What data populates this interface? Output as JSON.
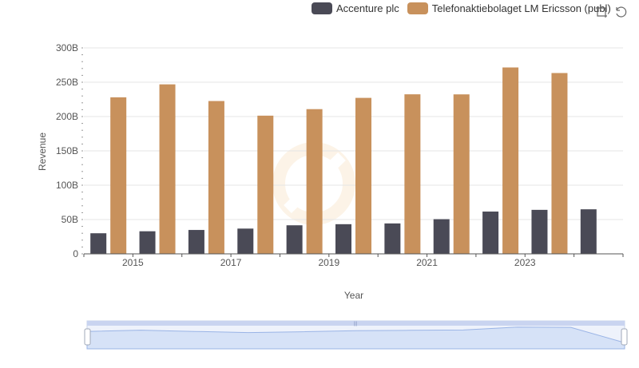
{
  "chart_data": {
    "type": "bar",
    "xlabel": "Year",
    "ylabel": "Revenue",
    "ylim": [
      0,
      300000000000
    ],
    "y_ticks": [
      "0",
      "50B",
      "100B",
      "150B",
      "200B",
      "250B",
      "300B"
    ],
    "x_tick_labels": [
      "2015",
      "2017",
      "2019",
      "2021",
      "2023"
    ],
    "categories": [
      "2014",
      "2015",
      "2016",
      "2017",
      "2018",
      "2019",
      "2020",
      "2021",
      "2022",
      "2023",
      "2024"
    ],
    "series": [
      {
        "name": "Accenture plc",
        "color": "#4a4a56",
        "values": [
          30000000000,
          32900000000,
          34800000000,
          36800000000,
          41600000000,
          43200000000,
          44300000000,
          50500000000,
          61600000000,
          64100000000,
          64900000000
        ]
      },
      {
        "name": "Telefonaktiebolaget LM Ericsson (publ)",
        "color": "#c8915c",
        "values": [
          228000000000,
          246900000000,
          222600000000,
          201300000000,
          210800000000,
          227200000000,
          232400000000,
          232300000000,
          271500000000,
          263400000000,
          null
        ]
      }
    ],
    "grid": true,
    "legend_position": "top-right"
  },
  "toolbox": {
    "icons": [
      "zoom-icon",
      "restore-icon"
    ]
  },
  "colors": {
    "accent_dark": "#4a4a56",
    "accent_gold": "#c8915c",
    "slider_fill": "#d6e2f7"
  }
}
